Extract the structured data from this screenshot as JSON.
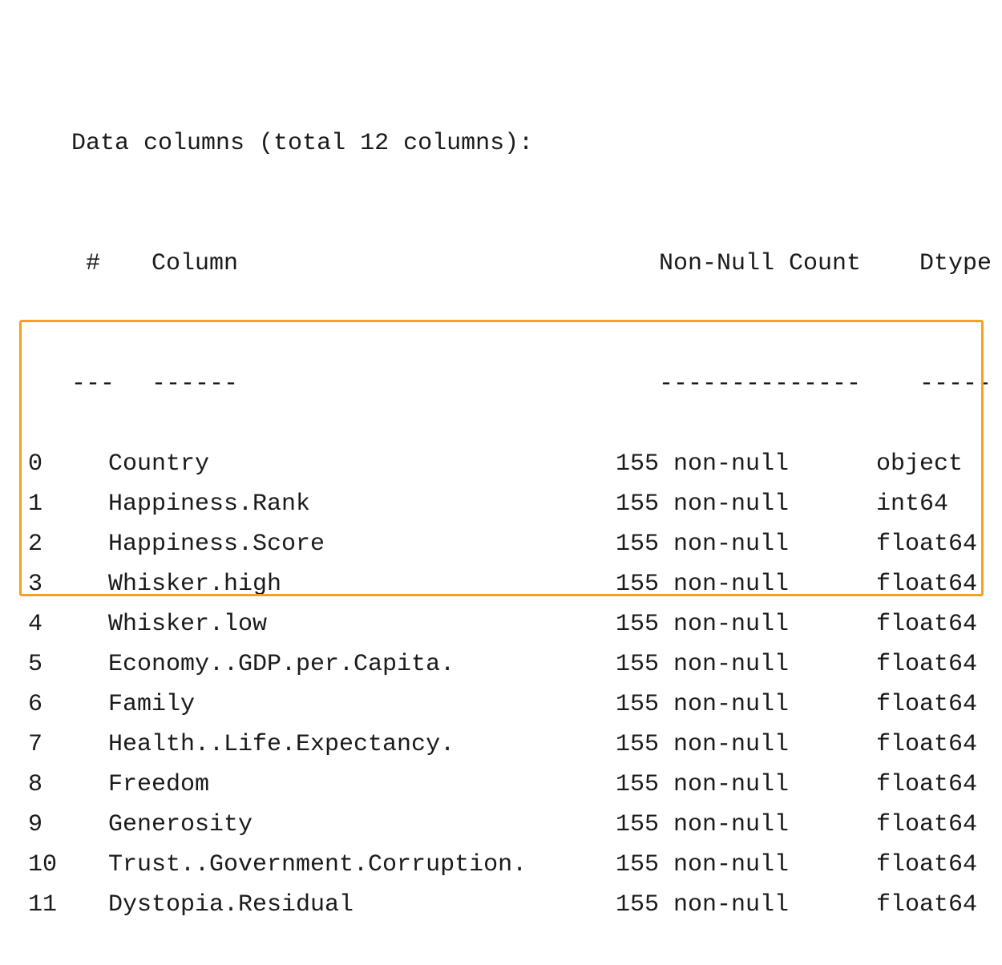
{
  "header": "Data columns (total 12 columns):",
  "columns_header": {
    "index": " #",
    "column": "Column",
    "count": "Non-Null Count",
    "dtype": "Dtype"
  },
  "separator": {
    "index": "---",
    "column": "------",
    "count": "--------------",
    "dtype": "-----"
  },
  "rows": [
    {
      "index": "0",
      "column": "Country",
      "count": "155 non-null",
      "dtype": "object"
    },
    {
      "index": "1",
      "column": "Happiness.Rank",
      "count": "155 non-null",
      "dtype": "int64"
    },
    {
      "index": "2",
      "column": "Happiness.Score",
      "count": "155 non-null",
      "dtype": "float64"
    },
    {
      "index": "3",
      "column": "Whisker.high",
      "count": "155 non-null",
      "dtype": "float64"
    },
    {
      "index": "4",
      "column": "Whisker.low",
      "count": "155 non-null",
      "dtype": "float64"
    },
    {
      "index": "5",
      "column": "Economy..GDP.per.Capita.",
      "count": "155 non-null",
      "dtype": "float64"
    },
    {
      "index": "6",
      "column": "Family",
      "count": "155 non-null",
      "dtype": "float64"
    },
    {
      "index": "7",
      "column": "Health..Life.Expectancy.",
      "count": "155 non-null",
      "dtype": "float64"
    },
    {
      "index": "8",
      "column": "Freedom",
      "count": "155 non-null",
      "dtype": "float64"
    },
    {
      "index": "9",
      "column": "Generosity",
      "count": "155 non-null",
      "dtype": "float64"
    },
    {
      "index": "10",
      "column": "Trust..Government.Corruption.",
      "count": "155 non-null",
      "dtype": "float64"
    },
    {
      "index": "11",
      "column": "Dystopia.Residual",
      "count": "155 non-null",
      "dtype": "float64"
    }
  ],
  "highlight": {
    "color": "#f5a023",
    "first_row_index": "5",
    "last_row_index": "11"
  }
}
